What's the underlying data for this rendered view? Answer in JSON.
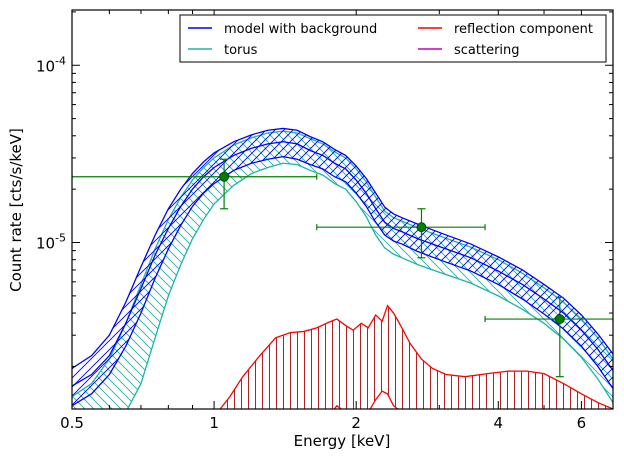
{
  "chart_data": {
    "type": "line",
    "xlabel": "Energy [keV]",
    "ylabel": "Count rate [cts/s/keV]",
    "xscale": "log",
    "yscale": "log",
    "xlim": [
      0.5,
      7.0
    ],
    "ylim": [
      1.15e-06,
      0.000205
    ],
    "x_ticks": [
      {
        "value": 0.5,
        "label": "0.5"
      },
      {
        "value": 1,
        "label": "1"
      },
      {
        "value": 2,
        "label": "2"
      },
      {
        "value": 4,
        "label": "4"
      },
      {
        "value": 6,
        "label": "6"
      }
    ],
    "y_ticks": [
      {
        "value": 1e-05,
        "base": "10",
        "exp": "-5"
      },
      {
        "value": 0.0001,
        "base": "10",
        "exp": "-4"
      }
    ],
    "legend": {
      "placement": "top-right",
      "entries": [
        {
          "label": "model with background",
          "color": "#0000ff"
        },
        {
          "label": "reflection component",
          "color": "#ff0000"
        },
        {
          "label": "torus",
          "color": "#20b2aa"
        },
        {
          "label": "scattering",
          "color": "#bf00bf"
        }
      ]
    },
    "series": [
      {
        "name": "model with background",
        "color": "#0000ff",
        "style": "band",
        "x": [
          0.5,
          0.55,
          0.6,
          0.65,
          0.7,
          0.75,
          0.8,
          0.85,
          0.9,
          0.95,
          1.0,
          1.1,
          1.2,
          1.3,
          1.4,
          1.5,
          1.6,
          1.7,
          1.8,
          1.9,
          2.0,
          2.1,
          2.2,
          2.3,
          2.4,
          2.5,
          2.7,
          3.0,
          3.5,
          4.0,
          4.5,
          5.0,
          5.5,
          6.0,
          6.5,
          7.0
        ],
        "mid": [
          1.55e-06,
          1.8e-06,
          2.3e-06,
          3.5e-06,
          5.5e-06,
          8.5e-06,
          1.2e-05,
          1.6e-05,
          2e-05,
          2.35e-05,
          2.65e-05,
          3.1e-05,
          3.4e-05,
          3.6e-05,
          3.7e-05,
          3.6e-05,
          3.3e-05,
          3.1e-05,
          2.8e-05,
          2.6e-05,
          2.25e-05,
          1.9e-05,
          1.55e-05,
          1.3e-05,
          1.2e-05,
          1.15e-05,
          1.05e-05,
          9.5e-06,
          8.2e-06,
          6.9e-06,
          5.8e-06,
          4.8e-06,
          4e-06,
          3.2e-06,
          2.5e-06,
          1.9e-06
        ],
        "lo": [
          1.2e-06,
          1.4e-06,
          1.8e-06,
          2.6e-06,
          4e-06,
          6.3e-06,
          9.2e-06,
          1.25e-05,
          1.6e-05,
          1.9e-05,
          2.15e-05,
          2.55e-05,
          2.8e-05,
          2.95e-05,
          3.05e-05,
          2.95e-05,
          2.75e-05,
          2.6e-05,
          2.35e-05,
          2.2e-05,
          1.9e-05,
          1.6e-05,
          1.3e-05,
          1.1e-05,
          1.02e-05,
          9.8e-06,
          8.9e-06,
          8e-06,
          6.9e-06,
          5.8e-06,
          4.8e-06,
          3.95e-06,
          3.25e-06,
          2.6e-06,
          2e-06,
          1.5e-06
        ],
        "hi": [
          1.95e-06,
          2.3e-06,
          3e-06,
          4.6e-06,
          7.3e-06,
          1.1e-05,
          1.55e-05,
          2e-05,
          2.45e-05,
          2.85e-05,
          3.2e-05,
          3.7e-05,
          4.05e-05,
          4.3e-05,
          4.4e-05,
          4.3e-05,
          3.95e-05,
          3.7e-05,
          3.35e-05,
          3.1e-05,
          2.7e-05,
          2.3e-05,
          1.9e-05,
          1.58e-05,
          1.45e-05,
          1.38e-05,
          1.27e-05,
          1.14e-05,
          9.8e-06,
          8.3e-06,
          7e-06,
          5.8e-06,
          4.85e-06,
          3.9e-06,
          3.05e-06,
          2.35e-06
        ]
      },
      {
        "name": "torus",
        "color": "#20b2aa",
        "style": "band",
        "x": [
          0.5,
          0.55,
          0.6,
          0.65,
          0.7,
          0.75,
          0.8,
          0.85,
          0.9,
          0.95,
          1.0,
          1.1,
          1.2,
          1.3,
          1.4,
          1.5,
          1.6,
          1.7,
          1.8,
          1.9,
          2.0,
          2.1,
          2.2,
          2.3,
          2.4,
          2.5,
          2.7,
          3.0,
          3.5,
          4.0,
          4.5,
          5.0,
          5.5,
          6.0,
          6.5,
          7.0
        ],
        "lo": [
          8e-07,
          8.5e-07,
          9.5e-07,
          1.1e-06,
          1.6e-06,
          2.9e-06,
          5e-06,
          7.5e-06,
          1.05e-05,
          1.35e-05,
          1.65e-05,
          2.1e-05,
          2.45e-05,
          2.65e-05,
          2.8e-05,
          2.75e-05,
          2.55e-05,
          2.4e-05,
          2.15e-05,
          2e-05,
          1.7e-05,
          1.4e-05,
          1.1e-05,
          9.3e-06,
          8.6e-06,
          8.2e-06,
          7.5e-06,
          6.8e-06,
          5.9e-06,
          5e-06,
          4.2e-06,
          3.5e-06,
          2.85e-06,
          2.25e-06,
          1.7e-06,
          1.25e-06
        ],
        "hi": [
          1.35e-06,
          1.6e-06,
          2.2e-06,
          3.5e-06,
          5.8e-06,
          9.2e-06,
          1.35e-05,
          1.8e-05,
          2.25e-05,
          2.65e-05,
          3e-05,
          3.55e-05,
          3.9e-05,
          4.15e-05,
          4.25e-05,
          4.15e-05,
          3.85e-05,
          3.6e-05,
          3.25e-05,
          3e-05,
          2.6e-05,
          2.2e-05,
          1.8e-05,
          1.5e-05,
          1.38e-05,
          1.32e-05,
          1.21e-05,
          1.09e-05,
          9.4e-06,
          8e-06,
          6.7e-06,
          5.55e-06,
          4.6e-06,
          3.7e-06,
          2.9e-06,
          2.2e-06
        ]
      },
      {
        "name": "reflection component",
        "color": "#ff0000",
        "style": "band",
        "x": [
          1.03,
          1.08,
          1.15,
          1.25,
          1.35,
          1.45,
          1.55,
          1.65,
          1.75,
          1.82,
          1.9,
          1.97,
          2.05,
          2.12,
          2.2,
          2.27,
          2.33,
          2.4,
          2.5,
          2.6,
          2.75,
          2.9,
          3.1,
          3.4,
          3.8,
          4.2,
          4.6,
          5.0,
          5.5,
          6.0,
          6.5,
          7.0
        ],
        "lo": [
          1e-06,
          1e-06,
          1e-06,
          1e-06,
          1e-06,
          1e-06,
          1e-06,
          1e-06,
          1.05e-06,
          1.2e-06,
          1.1e-06,
          1.05e-06,
          1e-06,
          1.1e-06,
          1.3e-06,
          1.45e-06,
          1.4e-06,
          1.2e-06,
          1.1e-06,
          1.05e-06,
          1e-06,
          1e-06,
          1e-06,
          1e-06,
          1e-06,
          1e-06,
          1e-06,
          1e-06,
          1e-06,
          1e-06,
          1e-06,
          1e-06
        ],
        "hi": [
          1.15e-06,
          1.35e-06,
          1.75e-06,
          2.3e-06,
          2.9e-06,
          3.1e-06,
          3.15e-06,
          3.3e-06,
          3.55e-06,
          3.7e-06,
          3.4e-06,
          3.2e-06,
          3.5e-06,
          3.3e-06,
          3.9e-06,
          3.6e-06,
          4.4e-06,
          4e-06,
          3.3e-06,
          2.7e-06,
          2.2e-06,
          1.95e-06,
          1.8e-06,
          1.75e-06,
          1.82e-06,
          1.88e-06,
          1.88e-06,
          1.82e-06,
          1.6e-06,
          1.4e-06,
          1.25e-06,
          1.15e-06
        ]
      },
      {
        "name": "data",
        "color": "#008000",
        "style": "errorbar",
        "points": [
          {
            "x": 1.05,
            "x_lo": 0.5,
            "x_hi": 1.65,
            "y": 2.35e-05,
            "y_lo": 1.55e-05,
            "y_hi": 2.95e-05
          },
          {
            "x": 2.75,
            "x_lo": 1.65,
            "x_hi": 3.75,
            "y": 1.22e-05,
            "y_lo": 8.2e-06,
            "y_hi": 1.55e-05
          },
          {
            "x": 5.4,
            "x_lo": 3.75,
            "x_hi": 7.0,
            "y": 3.7e-06,
            "y_lo": 1.75e-06,
            "y_hi": 4.9e-06
          }
        ]
      }
    ]
  }
}
